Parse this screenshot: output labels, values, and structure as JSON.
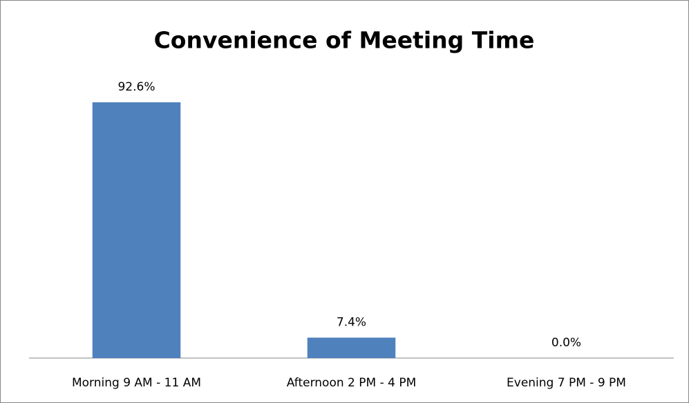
{
  "chart_data": {
    "type": "bar",
    "title": "Convenience of Meeting Time",
    "categories": [
      "Morning 9 AM - 11 AM",
      "Afternoon 2 PM - 4 PM",
      "Evening 7 PM - 9 PM"
    ],
    "values": [
      92.6,
      7.4,
      0.0
    ],
    "value_labels": [
      "92.6%",
      "7.4%",
      "0.0%"
    ],
    "color": "#4f81bd"
  }
}
